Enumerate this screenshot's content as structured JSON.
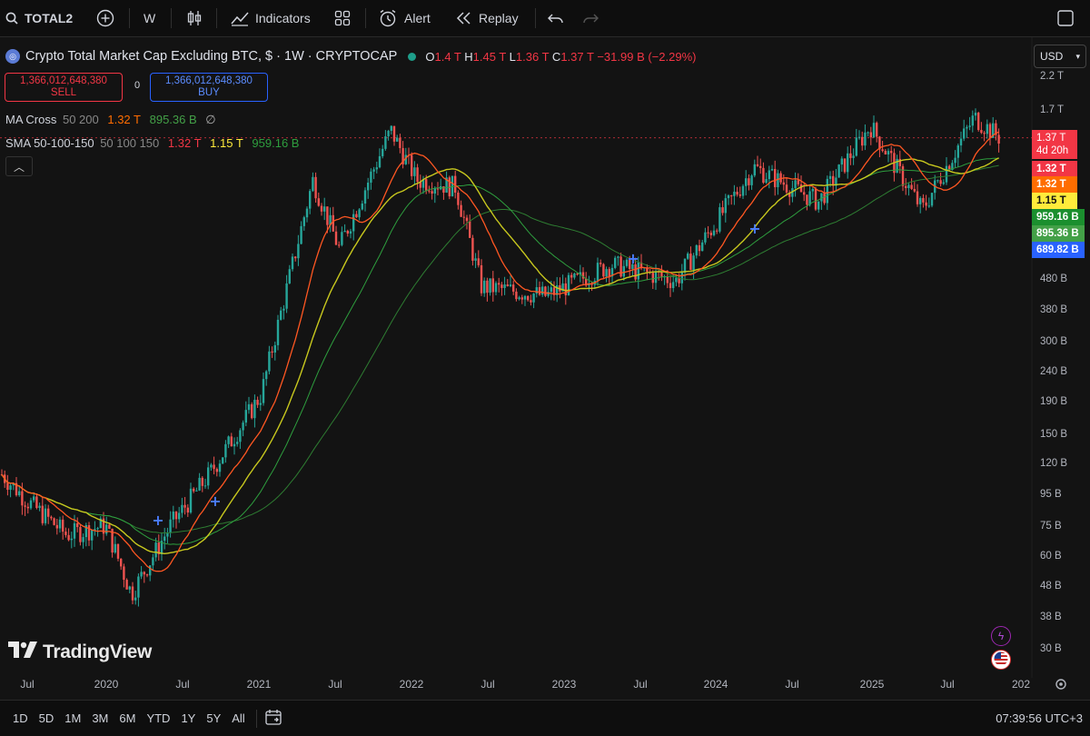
{
  "toolbar": {
    "symbol": "TOTAL2",
    "interval": "W",
    "indicators": "Indicators",
    "alert": "Alert",
    "replay": "Replay"
  },
  "legend": {
    "title": "Crypto Total Market Cap Excluding BTC, $ · 1W · CRYPTOCAP",
    "open_key": "O",
    "open": "1.4 T",
    "high_key": "H",
    "high": "1.45 T",
    "low_key": "L",
    "low": "1.36 T",
    "close_key": "C",
    "close": "1.37 T",
    "change": "−31.99 B (−2.29%)"
  },
  "trade": {
    "sell_price": "1,366,012,648,380",
    "sell_label": "SELL",
    "spread": "0",
    "buy_price": "1,366,012,648,380",
    "buy_label": "BUY"
  },
  "indicators": [
    {
      "name": "MA Cross",
      "params": "50 200",
      "v1": "1.32 T",
      "v2": "895.36 B",
      "extra": "∅"
    },
    {
      "name": "SMA 50-100-150",
      "params": "50 100 150",
      "v1": "1.32 T",
      "v2": "1.15 T",
      "v3": "959.16 B"
    }
  ],
  "currency": "USD",
  "price_axis": [
    "2.2 T",
    "1.7 T",
    "480 B",
    "380 B",
    "300 B",
    "240 B",
    "190 B",
    "150 B",
    "120 B",
    "95 B",
    "75 B",
    "60 B",
    "48 B",
    "38 B",
    "30 B"
  ],
  "price_labels": {
    "last": "1.37 T",
    "countdown": "4d 20h",
    "sma50": "1.32 T",
    "ma50": "1.32 T",
    "sma100": "1.15 T",
    "sma150": "959.16 B",
    "ma200": "895.36 B",
    "other": "689.82 B"
  },
  "time_axis": [
    "Jul",
    "2020",
    "Jul",
    "2021",
    "Jul",
    "2022",
    "Jul",
    "2023",
    "Jul",
    "2024",
    "Jul",
    "2025",
    "Jul",
    "202"
  ],
  "bottom": {
    "ranges": [
      "1D",
      "5D",
      "1M",
      "3M",
      "6M",
      "YTD",
      "1Y",
      "5Y",
      "All"
    ],
    "clock": "07:39:56 UTC+3"
  },
  "logo": "TradingView",
  "colors": {
    "up": "#26a69a",
    "down": "#ef5350",
    "sma50": "#ff5722",
    "sma100": "#c8c81e",
    "sma150": "#2e7d32",
    "ma200": "#2e7d32",
    "label_red": "#f23645",
    "label_orange": "#ff6d00",
    "label_yellow": "#ffeb3b",
    "label_green": "#1b8f2e",
    "label_green2": "#43a047",
    "label_blue": "#2962ff"
  },
  "chart_data": {
    "type": "candlestick",
    "title": "Crypto Total Market Cap Excluding BTC, $ · 1W · CRYPTOCAP",
    "y_scale": "log",
    "y_ticks": [
      "2.2 T",
      "1.7 T",
      "480 B",
      "380 B",
      "300 B",
      "240 B",
      "190 B",
      "150 B",
      "120 B",
      "95 B",
      "75 B",
      "60 B",
      "48 B",
      "38 B",
      "30 B"
    ],
    "x_ticks": [
      "Jul",
      "2020",
      "Jul",
      "2021",
      "Jul",
      "2022",
      "Jul",
      "2023",
      "Jul",
      "2024",
      "Jul",
      "2025",
      "Jul",
      "202"
    ],
    "last_close": "1.37 T",
    "approx_path_B": [
      [
        "2019-05",
        110
      ],
      [
        "2019-07",
        90
      ],
      [
        "2019-10",
        70
      ],
      [
        "2020-01",
        75
      ],
      [
        "2020-03",
        45
      ],
      [
        "2020-06",
        75
      ],
      [
        "2020-09",
        110
      ],
      [
        "2021-01",
        200
      ],
      [
        "2021-05",
        1000
      ],
      [
        "2021-07",
        600
      ],
      [
        "2021-11",
        1450
      ],
      [
        "2022-01",
        1000
      ],
      [
        "2022-04",
        950
      ],
      [
        "2022-06",
        450
      ],
      [
        "2022-11",
        420
      ],
      [
        "2023-04",
        530
      ],
      [
        "2023-09",
        470
      ],
      [
        "2024-03",
        1100
      ],
      [
        "2024-08",
        850
      ],
      [
        "2024-12",
        1500
      ],
      [
        "2025-04",
        800
      ],
      [
        "2025-08",
        1600
      ],
      [
        "2025-10",
        1370
      ]
    ],
    "series": [
      {
        "name": "MA Cross 50",
        "last": "1.32 T"
      },
      {
        "name": "MA Cross 200",
        "last": "895.36 B"
      },
      {
        "name": "SMA 50",
        "last": "1.32 T"
      },
      {
        "name": "SMA 100",
        "last": "1.15 T"
      },
      {
        "name": "SMA 150",
        "last": "959.16 B"
      }
    ]
  }
}
